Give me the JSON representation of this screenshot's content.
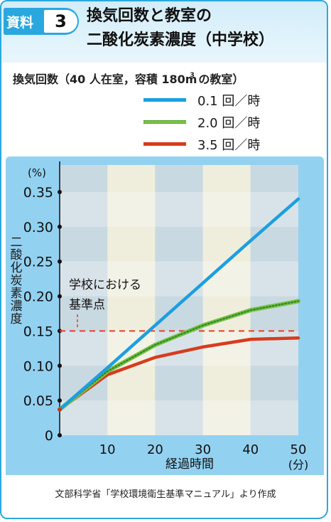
{
  "header": {
    "badge_label": "資料",
    "badge_number": "3",
    "title_line1": "換気回数と教室の",
    "title_line2": "二酸化炭素濃度（中学校）"
  },
  "subtitle": "換気回数（40 人在室，容積 180m",
  "subtitle_sup": "3",
  "subtitle_tail": " の教室）",
  "source": "文部科学省「学校環境衛生基準マニュアル」より作成",
  "colors": {
    "blue": "#1c9fe0",
    "green": "#7cc142",
    "green_dots": "#2e8b2e",
    "red": "#d73c1e",
    "ref": "#e0402a"
  },
  "chart_data": {
    "type": "line",
    "title": "換気回数と教室の二酸化炭素濃度（中学校）",
    "xlabel": "経過時間",
    "xunit": "(分)",
    "ylabel": "二酸化炭素濃度",
    "yunit": "(%)",
    "xlim": [
      0,
      50
    ],
    "ylim": [
      0,
      0.35
    ],
    "xticks": [
      "10",
      "20",
      "30",
      "40",
      "50"
    ],
    "yticks": [
      "0",
      "0.05",
      "0.10",
      "0.15",
      "0.20",
      "0.25",
      "0.30",
      "0.35"
    ],
    "reference": {
      "y": 0.15,
      "label_line1": "学校における",
      "label_line2": "基準点"
    },
    "series": [
      {
        "name": "0.1 回／時",
        "color": "#1c9fe0",
        "x": [
          0,
          10,
          20,
          30,
          40,
          50
        ],
        "y": [
          0.037,
          0.097,
          0.158,
          0.219,
          0.28,
          0.34
        ]
      },
      {
        "name": "2.0 回／時",
        "color": "#7cc142",
        "x": [
          0,
          10,
          20,
          30,
          40,
          50
        ],
        "y": [
          0.037,
          0.092,
          0.13,
          0.158,
          0.18,
          0.193
        ]
      },
      {
        "name": "3.5 回／時",
        "color": "#d73c1e",
        "x": [
          0,
          10,
          20,
          30,
          40,
          50
        ],
        "y": [
          0.037,
          0.087,
          0.112,
          0.127,
          0.138,
          0.14
        ]
      }
    ]
  }
}
